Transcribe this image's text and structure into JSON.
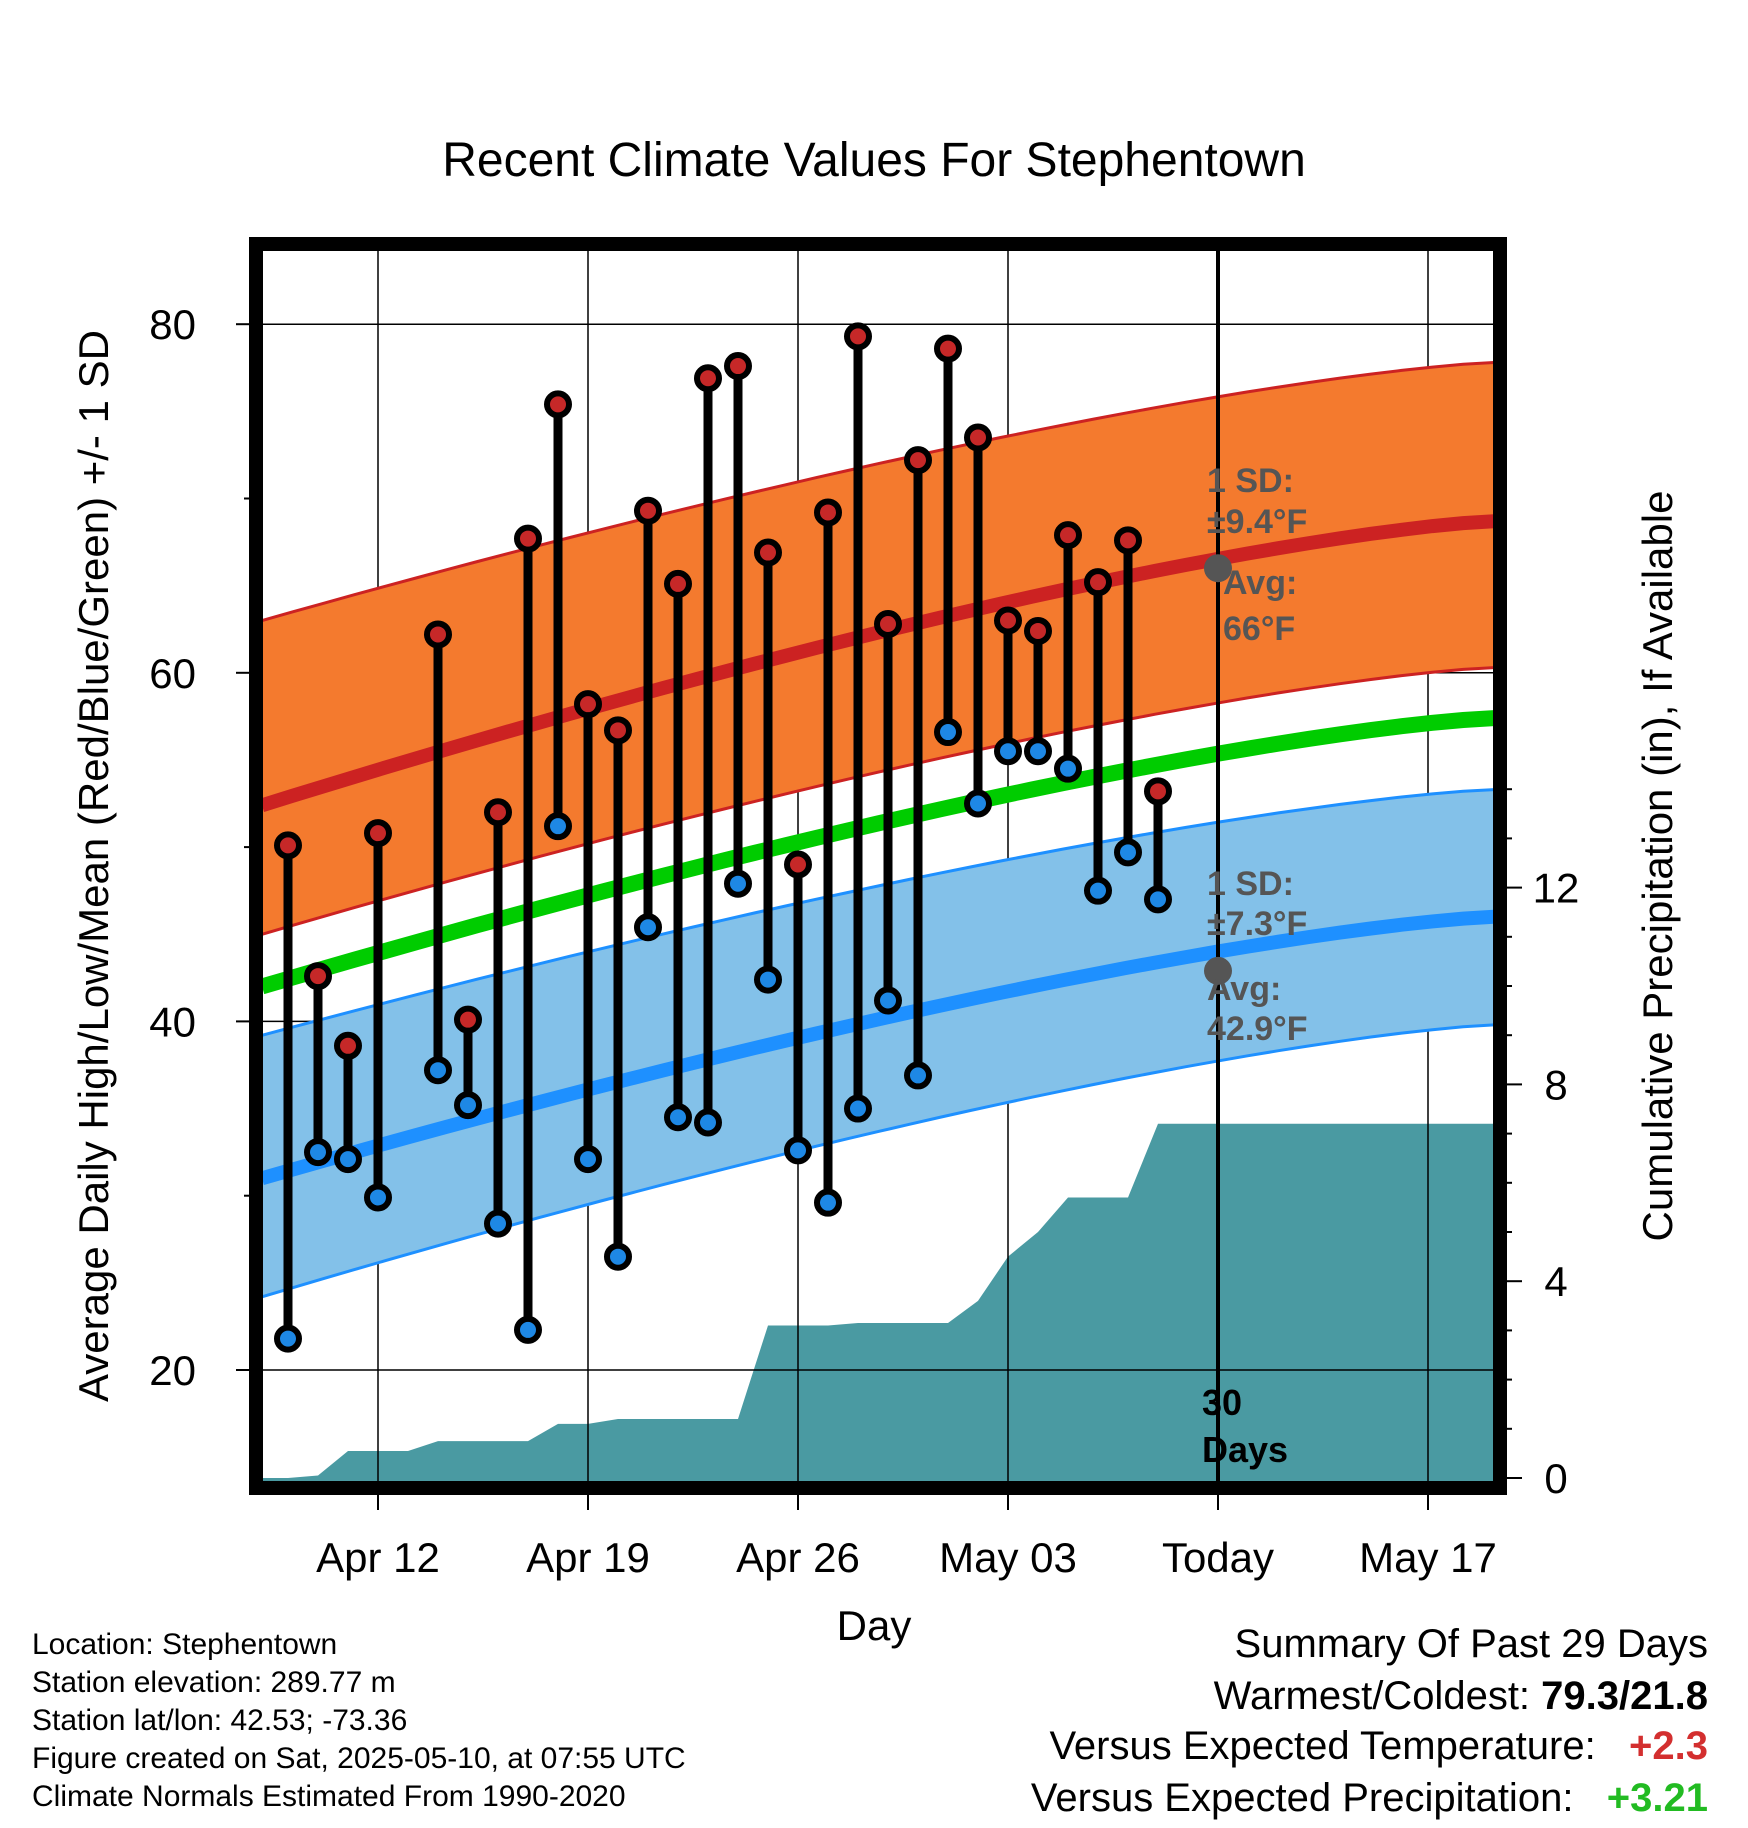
{
  "chart_data": {
    "type": "line",
    "title": "Recent Climate Values For Stephentown",
    "xlabel": "Day",
    "ylabel": "Average Daily High/Low/Mean (Red/Blue/Green) +/- 1 SD",
    "y2label": "Cumulative Precipitation (in), If Available",
    "x_ticks": [
      "Apr 12",
      "Apr 19",
      "Apr 26",
      "May 03",
      "Today",
      "May 17"
    ],
    "y_ticks": [
      20,
      40,
      60,
      80
    ],
    "y2_ticks": [
      0,
      4,
      8,
      12
    ],
    "ylim": [
      14.3,
      85
    ],
    "y2lim": [
      0,
      26
    ],
    "days": [
      "Apr 09",
      "Apr 10",
      "Apr 11",
      "Apr 12",
      "Apr 13",
      "Apr 14",
      "Apr 15",
      "Apr 16",
      "Apr 17",
      "Apr 18",
      "Apr 19",
      "Apr 20",
      "Apr 21",
      "Apr 22",
      "Apr 23",
      "Apr 24",
      "Apr 25",
      "Apr 26",
      "Apr 27",
      "Apr 28",
      "Apr 29",
      "Apr 30",
      "May 01",
      "May 02",
      "May 03",
      "May 04",
      "May 05",
      "May 06",
      "May 07",
      "May 08",
      "May 09",
      "May 10",
      "May 11",
      "May 12",
      "May 13",
      "May 14",
      "May 15",
      "May 16",
      "May 17",
      "May 18",
      "May 19",
      "May 20"
    ],
    "observed_high": [
      50.1,
      42.6,
      38.6,
      50.8,
      null,
      62.2,
      40.1,
      52.0,
      67.7,
      75.4,
      58.2,
      56.7,
      69.3,
      65.1,
      76.9,
      77.6,
      66.9,
      49.0,
      69.2,
      79.3,
      62.8,
      72.2,
      78.6,
      73.5,
      63.0,
      62.4,
      67.9,
      65.2,
      67.6,
      53.2
    ],
    "observed_low": [
      21.8,
      32.5,
      32.1,
      29.9,
      null,
      37.2,
      35.2,
      28.4,
      22.3,
      51.2,
      32.1,
      26.5,
      45.4,
      34.5,
      34.2,
      47.9,
      42.4,
      32.6,
      29.6,
      35.0,
      41.2,
      36.9,
      56.6,
      52.5,
      55.5,
      55.5,
      54.5,
      47.5,
      49.7,
      47.0
    ],
    "normal_high_avg": [
      52.4,
      68.7
    ],
    "normal_high_sd_label": "1 SD:",
    "normal_high_sd_value": "±9.4°F",
    "normal_high_avg_label": "Avg:",
    "normal_high_avg_value": "66°F",
    "normal_high_band": {
      "lower": [
        45.0,
        60.3
      ],
      "upper": [
        63.0,
        77.8
      ]
    },
    "normal_mean_avg": [
      42.0,
      57.4
    ],
    "normal_low_avg": [
      31.0,
      46.0
    ],
    "normal_low_sd_label": "1 SD:",
    "normal_low_sd_value": "±7.3°F",
    "normal_low_avg_label": "Avg:",
    "normal_low_avg_value": "42.9°F",
    "normal_low_band": {
      "lower": [
        24.2,
        39.8
      ],
      "upper": [
        39.2,
        53.3
      ]
    },
    "cumulative_precip_in": [
      0.0,
      0.05,
      0.55,
      0.55,
      0.55,
      0.75,
      0.75,
      0.75,
      0.75,
      1.1,
      1.1,
      1.2,
      1.2,
      1.2,
      1.2,
      1.2,
      3.1,
      3.1,
      3.1,
      3.15,
      3.15,
      3.15,
      3.15,
      3.6,
      4.5,
      5.0,
      5.7,
      5.7,
      5.7,
      7.2,
      7.2,
      7.2
    ],
    "today_marker_label": "30\nDays",
    "today_label_line1": "30",
    "today_label_line2": "Days",
    "colors": {
      "high": "#cc2222",
      "low": "#1e90ff",
      "mean": "#00cc00",
      "high_band": "#f47a2e",
      "low_band": "#83c1e9",
      "precip": "#4a9aa2",
      "high_point": "#c62828",
      "low_point": "#1e88e5"
    },
    "grid": true
  },
  "footer": {
    "location": "Location: Stephentown",
    "elevation": "Station elevation: 289.77 m",
    "latlon": "Station lat/lon: 42.53; -73.36",
    "created": "Figure created on Sat, 2025-05-10, at 07:55 UTC",
    "normals": "Climate Normals Estimated From 1990-2020"
  },
  "summary": {
    "heading": "Summary Of Past 29 Days",
    "warm_cold_label": "Warmest/Coldest:",
    "warm_cold_value": "79.3/21.8",
    "temp_label": "Versus Expected Temperature:",
    "temp_value": "+2.3",
    "precip_label": "Versus Expected Precipitation:",
    "precip_value": "+3.21",
    "temp_color": "#d32f2f",
    "precip_color": "#22bb22"
  }
}
